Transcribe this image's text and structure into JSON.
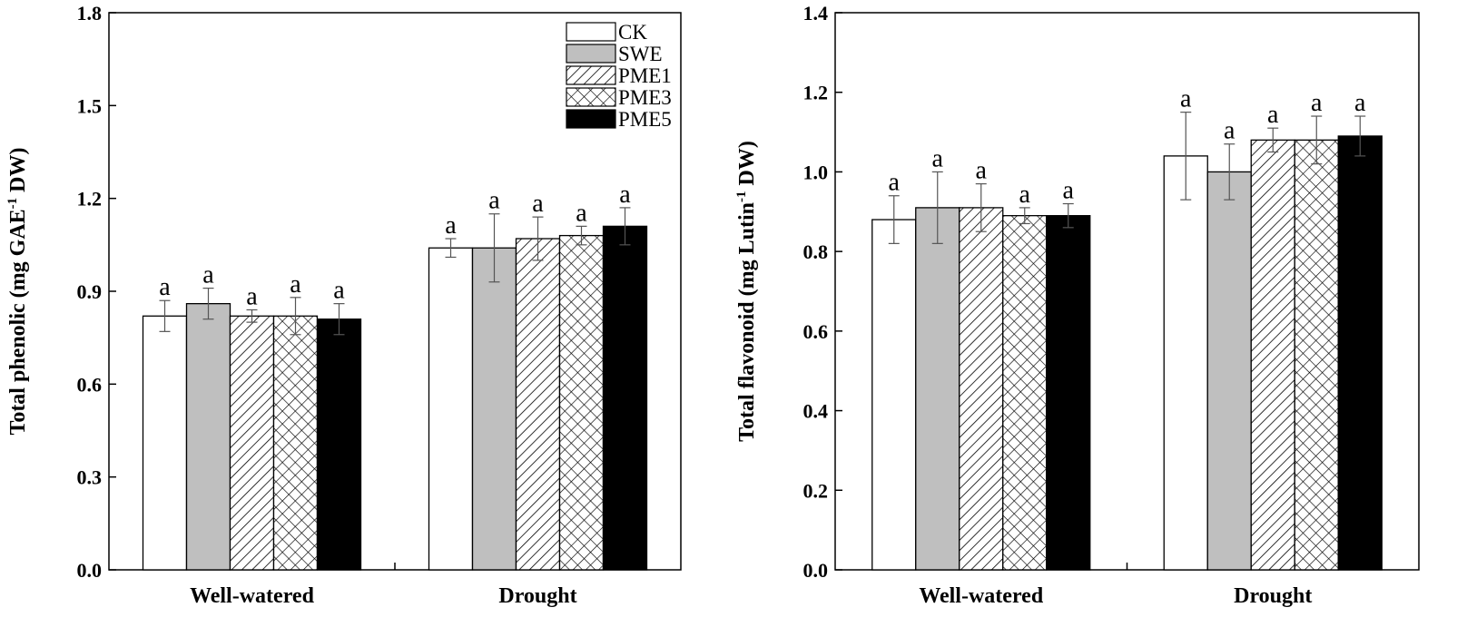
{
  "chart_data": [
    {
      "type": "bar",
      "ylabel_main": "Total phenolic (mg GAE",
      "ylabel_sup": "-1",
      "ylabel_tail": " DW)",
      "xlabel": "",
      "categories": [
        "Well-watered",
        "Drought"
      ],
      "ylim": [
        0,
        1.8
      ],
      "yticks": [
        "0.0",
        "0.3",
        "0.6",
        "0.9",
        "1.2",
        "1.5",
        "1.8"
      ],
      "show_legend": true,
      "series": [
        {
          "name": "CK",
          "values": [
            0.82,
            1.04
          ],
          "errors": [
            0.05,
            0.03
          ],
          "letters": [
            "a",
            "a"
          ]
        },
        {
          "name": "SWE",
          "values": [
            0.86,
            1.04
          ],
          "errors": [
            0.05,
            0.11
          ],
          "letters": [
            "a",
            "a"
          ]
        },
        {
          "name": "PME1",
          "values": [
            0.82,
            1.07
          ],
          "errors": [
            0.02,
            0.07
          ],
          "letters": [
            "a",
            "a"
          ]
        },
        {
          "name": "PME3",
          "values": [
            0.82,
            1.08
          ],
          "errors": [
            0.06,
            0.03
          ],
          "letters": [
            "a",
            "a"
          ]
        },
        {
          "name": "PME5",
          "values": [
            0.81,
            1.11
          ],
          "errors": [
            0.05,
            0.06
          ],
          "letters": [
            "a",
            "a"
          ]
        }
      ]
    },
    {
      "type": "bar",
      "ylabel_main": "Total flavonoid (mg Lutin",
      "ylabel_sup": "-1",
      "ylabel_tail": " DW)",
      "xlabel": "",
      "categories": [
        "Well-watered",
        "Drought"
      ],
      "ylim": [
        0,
        1.4
      ],
      "yticks": [
        "0.0",
        "0.2",
        "0.4",
        "0.6",
        "0.8",
        "1.0",
        "1.2",
        "1.4"
      ],
      "show_legend": false,
      "series": [
        {
          "name": "CK",
          "values": [
            0.88,
            1.04
          ],
          "errors": [
            0.06,
            0.11
          ],
          "letters": [
            "a",
            "a"
          ]
        },
        {
          "name": "SWE",
          "values": [
            0.91,
            1.0
          ],
          "errors": [
            0.09,
            0.07
          ],
          "letters": [
            "a",
            "a"
          ]
        },
        {
          "name": "PME1",
          "values": [
            0.91,
            1.08
          ],
          "errors": [
            0.06,
            0.03
          ],
          "letters": [
            "a",
            "a"
          ]
        },
        {
          "name": "PME3",
          "values": [
            0.89,
            1.08
          ],
          "errors": [
            0.02,
            0.06
          ],
          "letters": [
            "a",
            "a"
          ]
        },
        {
          "name": "PME5",
          "values": [
            0.89,
            1.09
          ],
          "errors": [
            0.03,
            0.05
          ],
          "letters": [
            "a",
            "a"
          ]
        }
      ]
    }
  ],
  "legend": [
    "CK",
    "SWE",
    "PME1",
    "PME3",
    "PME5"
  ]
}
